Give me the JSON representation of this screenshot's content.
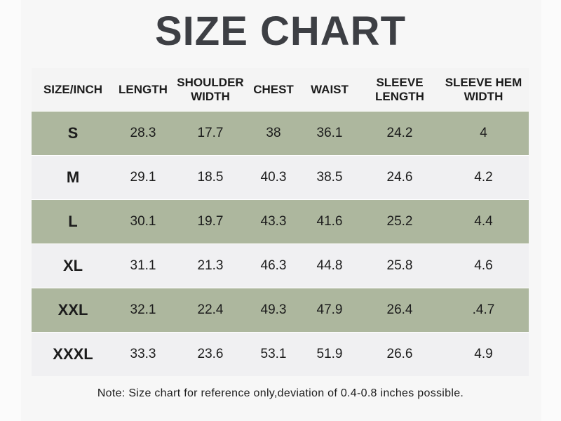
{
  "title": "SIZE CHART",
  "headers": [
    "SIZE/INCH",
    "LENGTH",
    "SHOULDER WIDTH",
    "CHEST",
    "WAIST",
    "SLEEVE LENGTH",
    "SLEEVE HEM WIDTH"
  ],
  "rows": [
    [
      "S",
      "28.3",
      "17.7",
      "38",
      "36.1",
      "24.2",
      "4"
    ],
    [
      "M",
      "29.1",
      "18.5",
      "40.3",
      "38.5",
      "24.6",
      "4.2"
    ],
    [
      "L",
      "30.1",
      "19.7",
      "43.3",
      "41.6",
      "25.2",
      "4.4"
    ],
    [
      "XL",
      "31.1",
      "21.3",
      "46.3",
      "44.8",
      "25.8",
      "4.6"
    ],
    [
      "XXL",
      "32.1",
      "22.4",
      "49.3",
      "47.9",
      "26.4",
      ".4.7"
    ],
    [
      "XXXL",
      "33.3",
      "23.6",
      "53.1",
      "51.9",
      "26.6",
      "4.9"
    ]
  ],
  "note": "Note: Size chart for reference only,deviation of 0.4-0.8 inches possible.",
  "colors": {
    "title": "#3d3f44",
    "row_green": "#adb79e",
    "row_light": "#f0f0f2"
  }
}
